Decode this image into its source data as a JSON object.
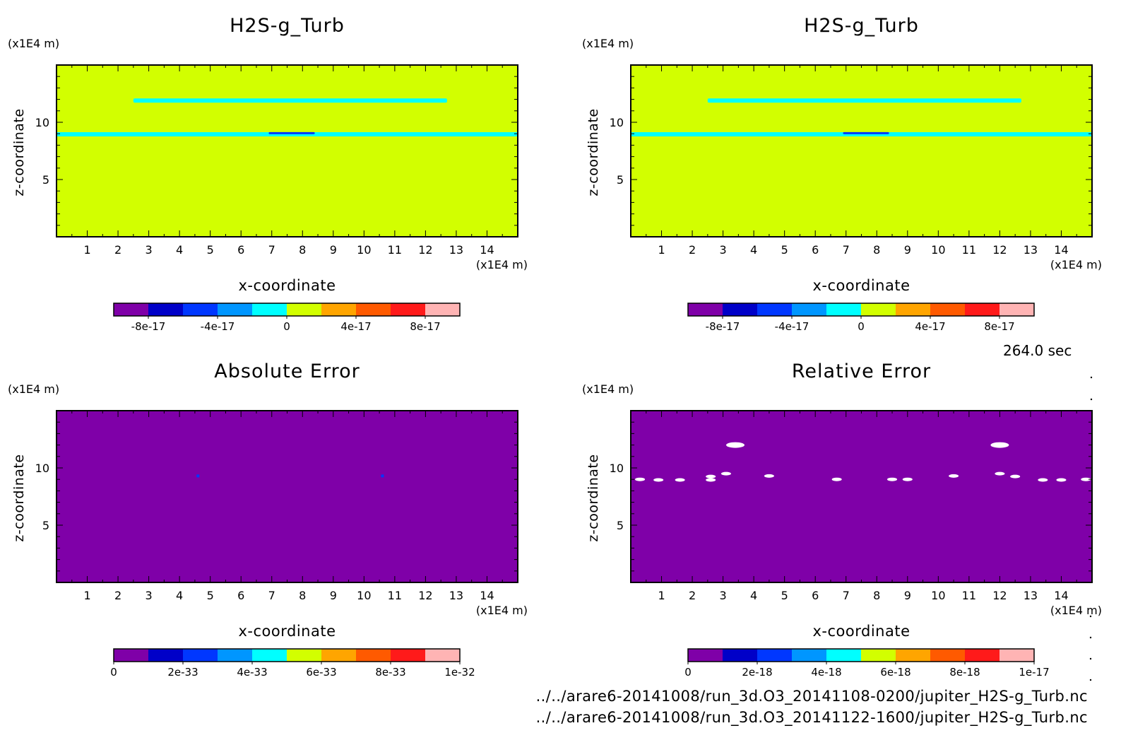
{
  "time_label": "264.0 sec",
  "files": [
    "../../arare6-20141008/run_3d.O3_20141108-0200/jupiter_H2S-g_Turb.nc",
    "../../arare6-20141008/run_3d.O3_20141122-1600/jupiter_H2S-g_Turb.nc"
  ],
  "palette": [
    "#7f00a8",
    "#0000c8",
    "#0037ff",
    "#0096ff",
    "#00ffff",
    "#d2ff00",
    "#ffa500",
    "#ff5a00",
    "#ff1a1a",
    "#ffb4b4"
  ],
  "chart_data": [
    {
      "type": "heatmap",
      "title": "H2S-g_Turb",
      "xlabel": "x-coordinate",
      "ylabel": "z-coordinate",
      "x_unit": "(x1E4 m)",
      "y_unit": "(x1E4 m)",
      "xlim": [
        0,
        15
      ],
      "ylim": [
        0,
        15
      ],
      "xticks": [
        "1",
        "2",
        "3",
        "4",
        "5",
        "6",
        "7",
        "8",
        "9",
        "10",
        "11",
        "12",
        "13",
        "14"
      ],
      "yticks": [
        "5",
        "10"
      ],
      "background_value": 0.0,
      "features": [
        {
          "z": 11.9,
          "x_start": 2.5,
          "x_end": 12.7,
          "value": -1e-17
        },
        {
          "z": 8.95,
          "x_start": 0,
          "x_end": 15,
          "value": -1e-17
        },
        {
          "z": 9.05,
          "x_start": 6.9,
          "x_end": 8.4,
          "value": -5e-17
        }
      ],
      "colorbar": {
        "min": -1e-16,
        "max": 1e-16,
        "labels": [
          "-8e-17",
          "-4e-17",
          "0",
          "4e-17",
          "8e-17"
        ]
      }
    },
    {
      "type": "heatmap",
      "title": "H2S-g_Turb",
      "xlabel": "x-coordinate",
      "ylabel": "z-coordinate",
      "x_unit": "(x1E4 m)",
      "y_unit": "(x1E4 m)",
      "xlim": [
        0,
        15
      ],
      "ylim": [
        0,
        15
      ],
      "xticks": [
        "1",
        "2",
        "3",
        "4",
        "5",
        "6",
        "7",
        "8",
        "9",
        "10",
        "11",
        "12",
        "13",
        "14"
      ],
      "yticks": [
        "5",
        "10"
      ],
      "background_value": 0.0,
      "features": [
        {
          "z": 11.9,
          "x_start": 2.5,
          "x_end": 12.7,
          "value": -1e-17
        },
        {
          "z": 8.95,
          "x_start": 0,
          "x_end": 15,
          "value": -1e-17
        },
        {
          "z": 9.05,
          "x_start": 6.9,
          "x_end": 8.4,
          "value": -5e-17
        }
      ],
      "colorbar": {
        "min": -1e-16,
        "max": 1e-16,
        "labels": [
          "-8e-17",
          "-4e-17",
          "0",
          "4e-17",
          "8e-17"
        ]
      }
    },
    {
      "type": "heatmap",
      "title": "Absolute Error",
      "xlabel": "x-coordinate",
      "ylabel": "z-coordinate",
      "x_unit": "(x1E4 m)",
      "y_unit": "(x1E4 m)",
      "xlim": [
        0,
        15
      ],
      "ylim": [
        0,
        15
      ],
      "xticks": [
        "1",
        "2",
        "3",
        "4",
        "5",
        "6",
        "7",
        "8",
        "9",
        "10",
        "11",
        "12",
        "13",
        "14"
      ],
      "yticks": [
        "5",
        "10"
      ],
      "background_value": 0.0,
      "spots": [
        {
          "x": 4.6,
          "z": 9.3,
          "value": 2e-33
        },
        {
          "x": 10.6,
          "z": 9.3,
          "value": 2e-33
        }
      ],
      "colorbar": {
        "min": 0,
        "max": 1e-32,
        "labels": [
          "0",
          "2e-33",
          "4e-33",
          "6e-33",
          "8e-33",
          "1e-32"
        ]
      }
    },
    {
      "type": "heatmap",
      "title": "Relative Error",
      "xlabel": "x-coordinate",
      "ylabel": "z-coordinate",
      "x_unit": "(x1E4 m)",
      "y_unit": "(x1E4 m)",
      "xlim": [
        0,
        15
      ],
      "ylim": [
        0,
        15
      ],
      "xticks": [
        "1",
        "2",
        "3",
        "4",
        "5",
        "6",
        "7",
        "8",
        "9",
        "10",
        "11",
        "12",
        "13",
        "14"
      ],
      "yticks": [
        "5",
        "10"
      ],
      "background_value": 0.0,
      "undefined_spots": [
        {
          "x": 3.4,
          "z": 12.0
        },
        {
          "x": 12.0,
          "z": 12.0
        },
        {
          "x": 0.3,
          "z": 9.0
        },
        {
          "x": 0.9,
          "z": 8.95
        },
        {
          "x": 1.6,
          "z": 8.95
        },
        {
          "x": 2.6,
          "z": 9.25
        },
        {
          "x": 2.6,
          "z": 8.95
        },
        {
          "x": 3.1,
          "z": 9.5
        },
        {
          "x": 4.5,
          "z": 9.3
        },
        {
          "x": 6.7,
          "z": 9.0
        },
        {
          "x": 8.5,
          "z": 9.0
        },
        {
          "x": 9.0,
          "z": 9.0
        },
        {
          "x": 10.5,
          "z": 9.3
        },
        {
          "x": 12.0,
          "z": 9.5
        },
        {
          "x": 12.5,
          "z": 9.25
        },
        {
          "x": 13.4,
          "z": 8.95
        },
        {
          "x": 14.0,
          "z": 8.95
        },
        {
          "x": 14.8,
          "z": 9.0
        }
      ],
      "colorbar": {
        "min": 0,
        "max": 1e-17,
        "labels": [
          "0",
          "2e-18",
          "4e-18",
          "6e-18",
          "8e-18",
          "1e-17"
        ]
      }
    }
  ]
}
